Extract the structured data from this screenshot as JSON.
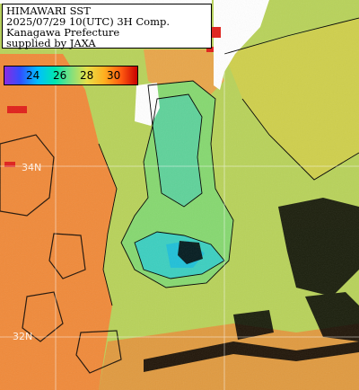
{
  "caption": {
    "line1": "HIMAWARI SST",
    "line2": "2025/07/29 10(UTC) 3H Comp.",
    "line3": "Kanagawa Prefecture",
    "line4": "supplied by JAXA"
  },
  "legend": {
    "ticks": [
      "24",
      "26",
      "28",
      "30"
    ],
    "colors": [
      "#8a2be2",
      "#3050ff",
      "#00bfff",
      "#00e6b0",
      "#7fe07f",
      "#e6e04a",
      "#ffb020",
      "#ff5a10",
      "#c80000"
    ]
  },
  "grid_labels": {
    "lat_upper": "34N",
    "lat_lower": "32N"
  },
  "map_colors": {
    "land": "#ffffff",
    "cloud": "#000000",
    "warm": "#f08a3a",
    "mid": "#a8d65a",
    "cool": "#4fd0a0",
    "cold": "#20c8d0"
  }
}
